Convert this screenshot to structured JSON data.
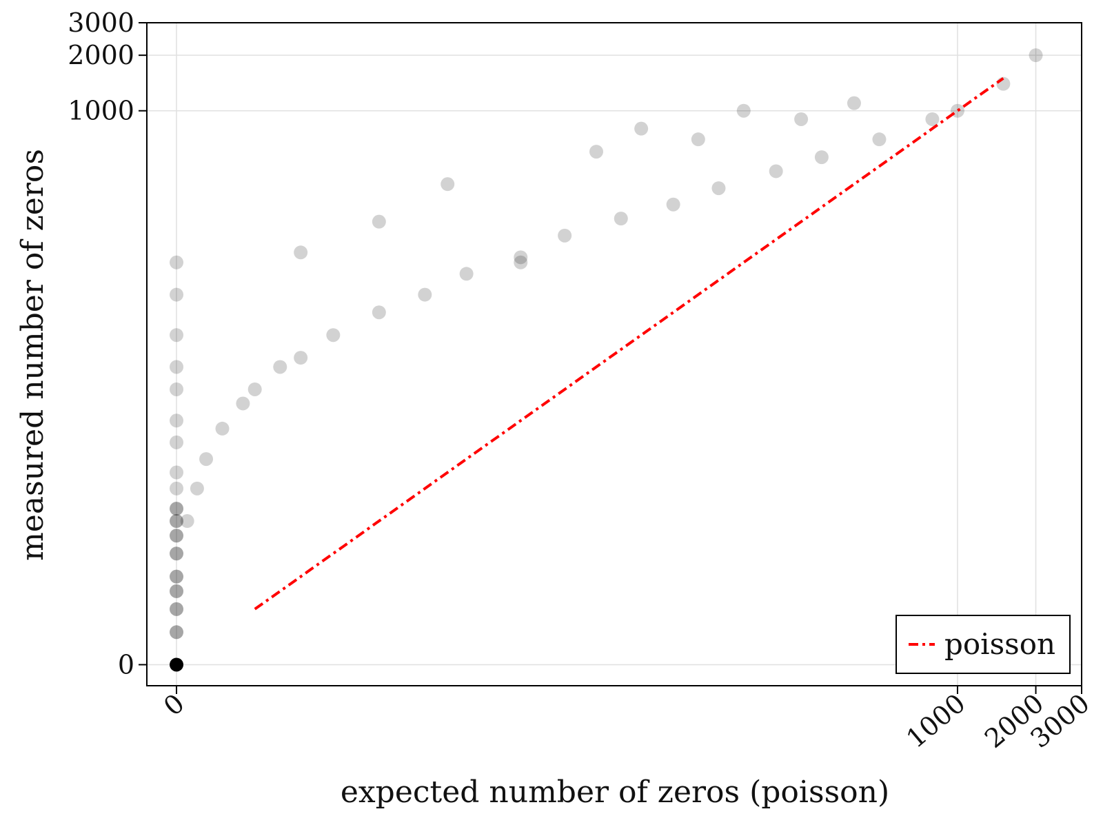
{
  "chart_data": {
    "type": "scatter",
    "title": "",
    "xlabel": "expected number of zeros (poisson)",
    "ylabel": "measured number of zeros",
    "x_scale": "symlog",
    "y_scale": "symlog",
    "xlim": [
      -0.3,
      3000
    ],
    "ylim": [
      -0.3,
      3000
    ],
    "x_ticks": [
      0,
      1000,
      2000,
      3000
    ],
    "x_tick_labels": [
      "0",
      "1000",
      "2000",
      "3000"
    ],
    "y_ticks": [
      0,
      1000,
      2000,
      3000
    ],
    "y_tick_labels": [
      "0",
      "1000",
      "2000",
      "3000"
    ],
    "grid": true,
    "legend": {
      "position": "bottom-right",
      "entries": [
        "poisson"
      ]
    },
    "series": [
      {
        "kind": "scatter",
        "color": "#000000",
        "opacity": 0.08,
        "description_points": [
          [
            0,
            0
          ],
          [
            0,
            0.5
          ],
          [
            0,
            1
          ],
          [
            0,
            1.5
          ],
          [
            0,
            2
          ],
          [
            0,
            3
          ],
          [
            0,
            4
          ],
          [
            0,
            5
          ],
          [
            0,
            6
          ],
          [
            0,
            8
          ],
          [
            0,
            10
          ],
          [
            0,
            15
          ],
          [
            0,
            20
          ],
          [
            0,
            30
          ],
          [
            0,
            40
          ],
          [
            0,
            60
          ],
          [
            0,
            100
          ],
          [
            0,
            150
          ],
          [
            0.1,
            5
          ],
          [
            0.2,
            8
          ],
          [
            0.3,
            12
          ],
          [
            0.5,
            18
          ],
          [
            0.8,
            25
          ],
          [
            1,
            30
          ],
          [
            1.5,
            40
          ],
          [
            2,
            45
          ],
          [
            3,
            60
          ],
          [
            5,
            80
          ],
          [
            8,
            100
          ],
          [
            12,
            130
          ],
          [
            20,
            160
          ],
          [
            30,
            210
          ],
          [
            50,
            260
          ],
          [
            80,
            310
          ],
          [
            120,
            380
          ],
          [
            200,
            470
          ],
          [
            300,
            560
          ],
          [
            500,
            700
          ],
          [
            800,
            900
          ],
          [
            1000,
            1000
          ],
          [
            1500,
            1400
          ],
          [
            2000,
            2000
          ],
          [
            2,
            170
          ],
          [
            5,
            250
          ],
          [
            10,
            400
          ],
          [
            20,
            150
          ],
          [
            40,
            600
          ],
          [
            60,
            800
          ],
          [
            100,
            700
          ],
          [
            150,
            1000
          ],
          [
            250,
            900
          ],
          [
            400,
            1100
          ]
        ]
      },
      {
        "kind": "line",
        "name": "poisson",
        "color": "#ff0000",
        "style": "dashdot",
        "x_range": [
          1,
          1500
        ],
        "relation": "y = x"
      }
    ]
  }
}
